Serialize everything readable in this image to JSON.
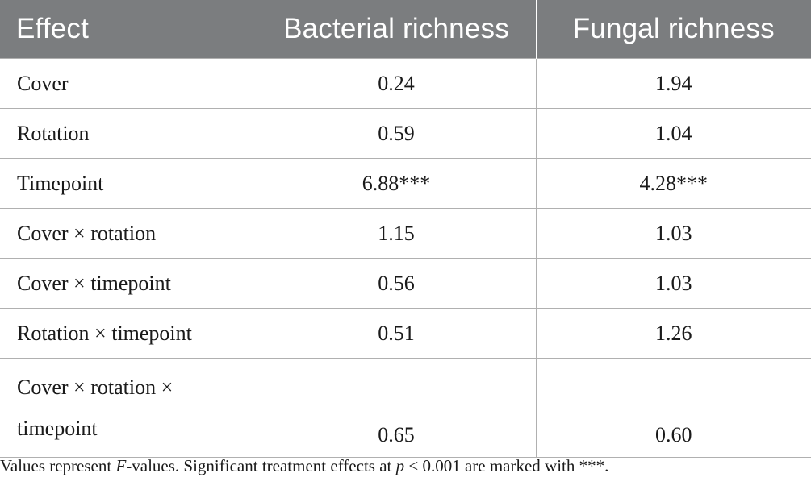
{
  "table": {
    "headers": {
      "effect": "Effect",
      "bacterial": "Bacterial richness",
      "fungal": "Fungal richness"
    },
    "rows": [
      {
        "effect": "Cover",
        "bacterial": "0.24",
        "fungal": "1.94"
      },
      {
        "effect": "Rotation",
        "bacterial": "0.59",
        "fungal": "1.04"
      },
      {
        "effect": "Timepoint",
        "bacterial": "6.88***",
        "fungal": "4.28***"
      },
      {
        "effect": "Cover × rotation",
        "bacterial": "1.15",
        "fungal": "1.03"
      },
      {
        "effect": "Cover × timepoint",
        "bacterial": "0.56",
        "fungal": "1.03"
      },
      {
        "effect": "Rotation × timepoint",
        "bacterial": "0.51",
        "fungal": "1.26"
      },
      {
        "effect_line1": "Cover × rotation ×",
        "effect_line2": "timepoint",
        "bacterial": "0.65",
        "fungal": "0.60"
      }
    ]
  },
  "footnote": {
    "part1": "Values represent ",
    "f_italic": "F",
    "part2": "-values. Significant treatment effects at ",
    "p_italic": "p",
    "part3": " < 0.001 are marked with ***."
  }
}
